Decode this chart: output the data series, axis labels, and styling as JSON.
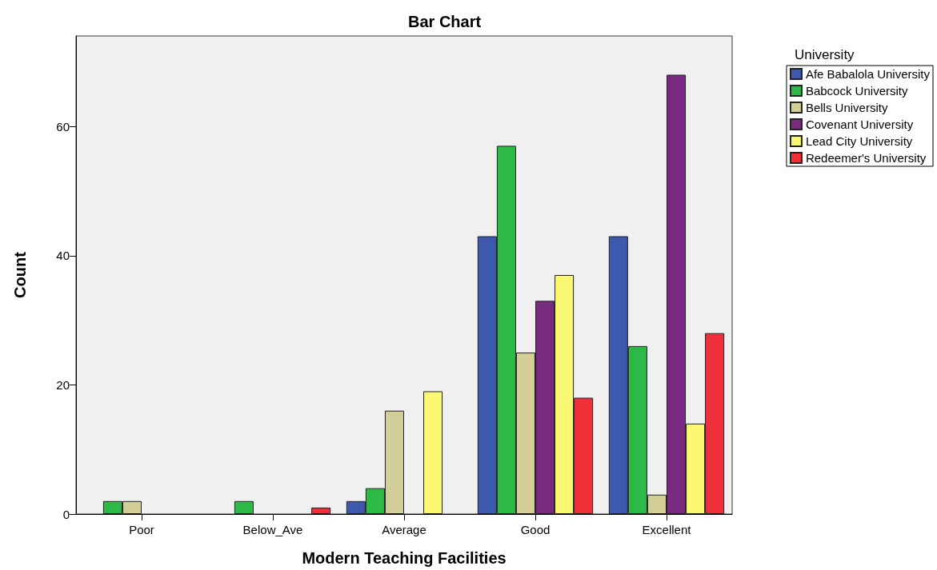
{
  "chart_data": {
    "type": "bar",
    "title": "Bar Chart",
    "xlabel": "Modern Teaching Facilities",
    "ylabel": "Count",
    "legend_title": "University",
    "categories": [
      "Poor",
      "Below_Ave",
      "Average",
      "Good",
      "Excellent"
    ],
    "series": [
      {
        "name": "Afe Babalola University",
        "color": "#3e58ac",
        "values": [
          0,
          0,
          2,
          43,
          43
        ]
      },
      {
        "name": "Babcock University",
        "color": "#2eb848",
        "values": [
          2,
          2,
          4,
          57,
          26
        ]
      },
      {
        "name": "Bells University",
        "color": "#d3ce97",
        "values": [
          2,
          0,
          16,
          25,
          3
        ]
      },
      {
        "name": "Covenant University",
        "color": "#782a7e",
        "values": [
          0,
          0,
          0,
          33,
          68
        ]
      },
      {
        "name": "Lead City University",
        "color": "#fbf873",
        "values": [
          0,
          0,
          19,
          37,
          14
        ]
      },
      {
        "name": "Redeemer's University",
        "color": "#ef3038",
        "values": [
          0,
          1,
          0,
          18,
          28
        ]
      }
    ],
    "ylim": [
      0,
      74
    ],
    "yticks": [
      0,
      20,
      40,
      60
    ],
    "grid": false,
    "legend": "top right"
  }
}
